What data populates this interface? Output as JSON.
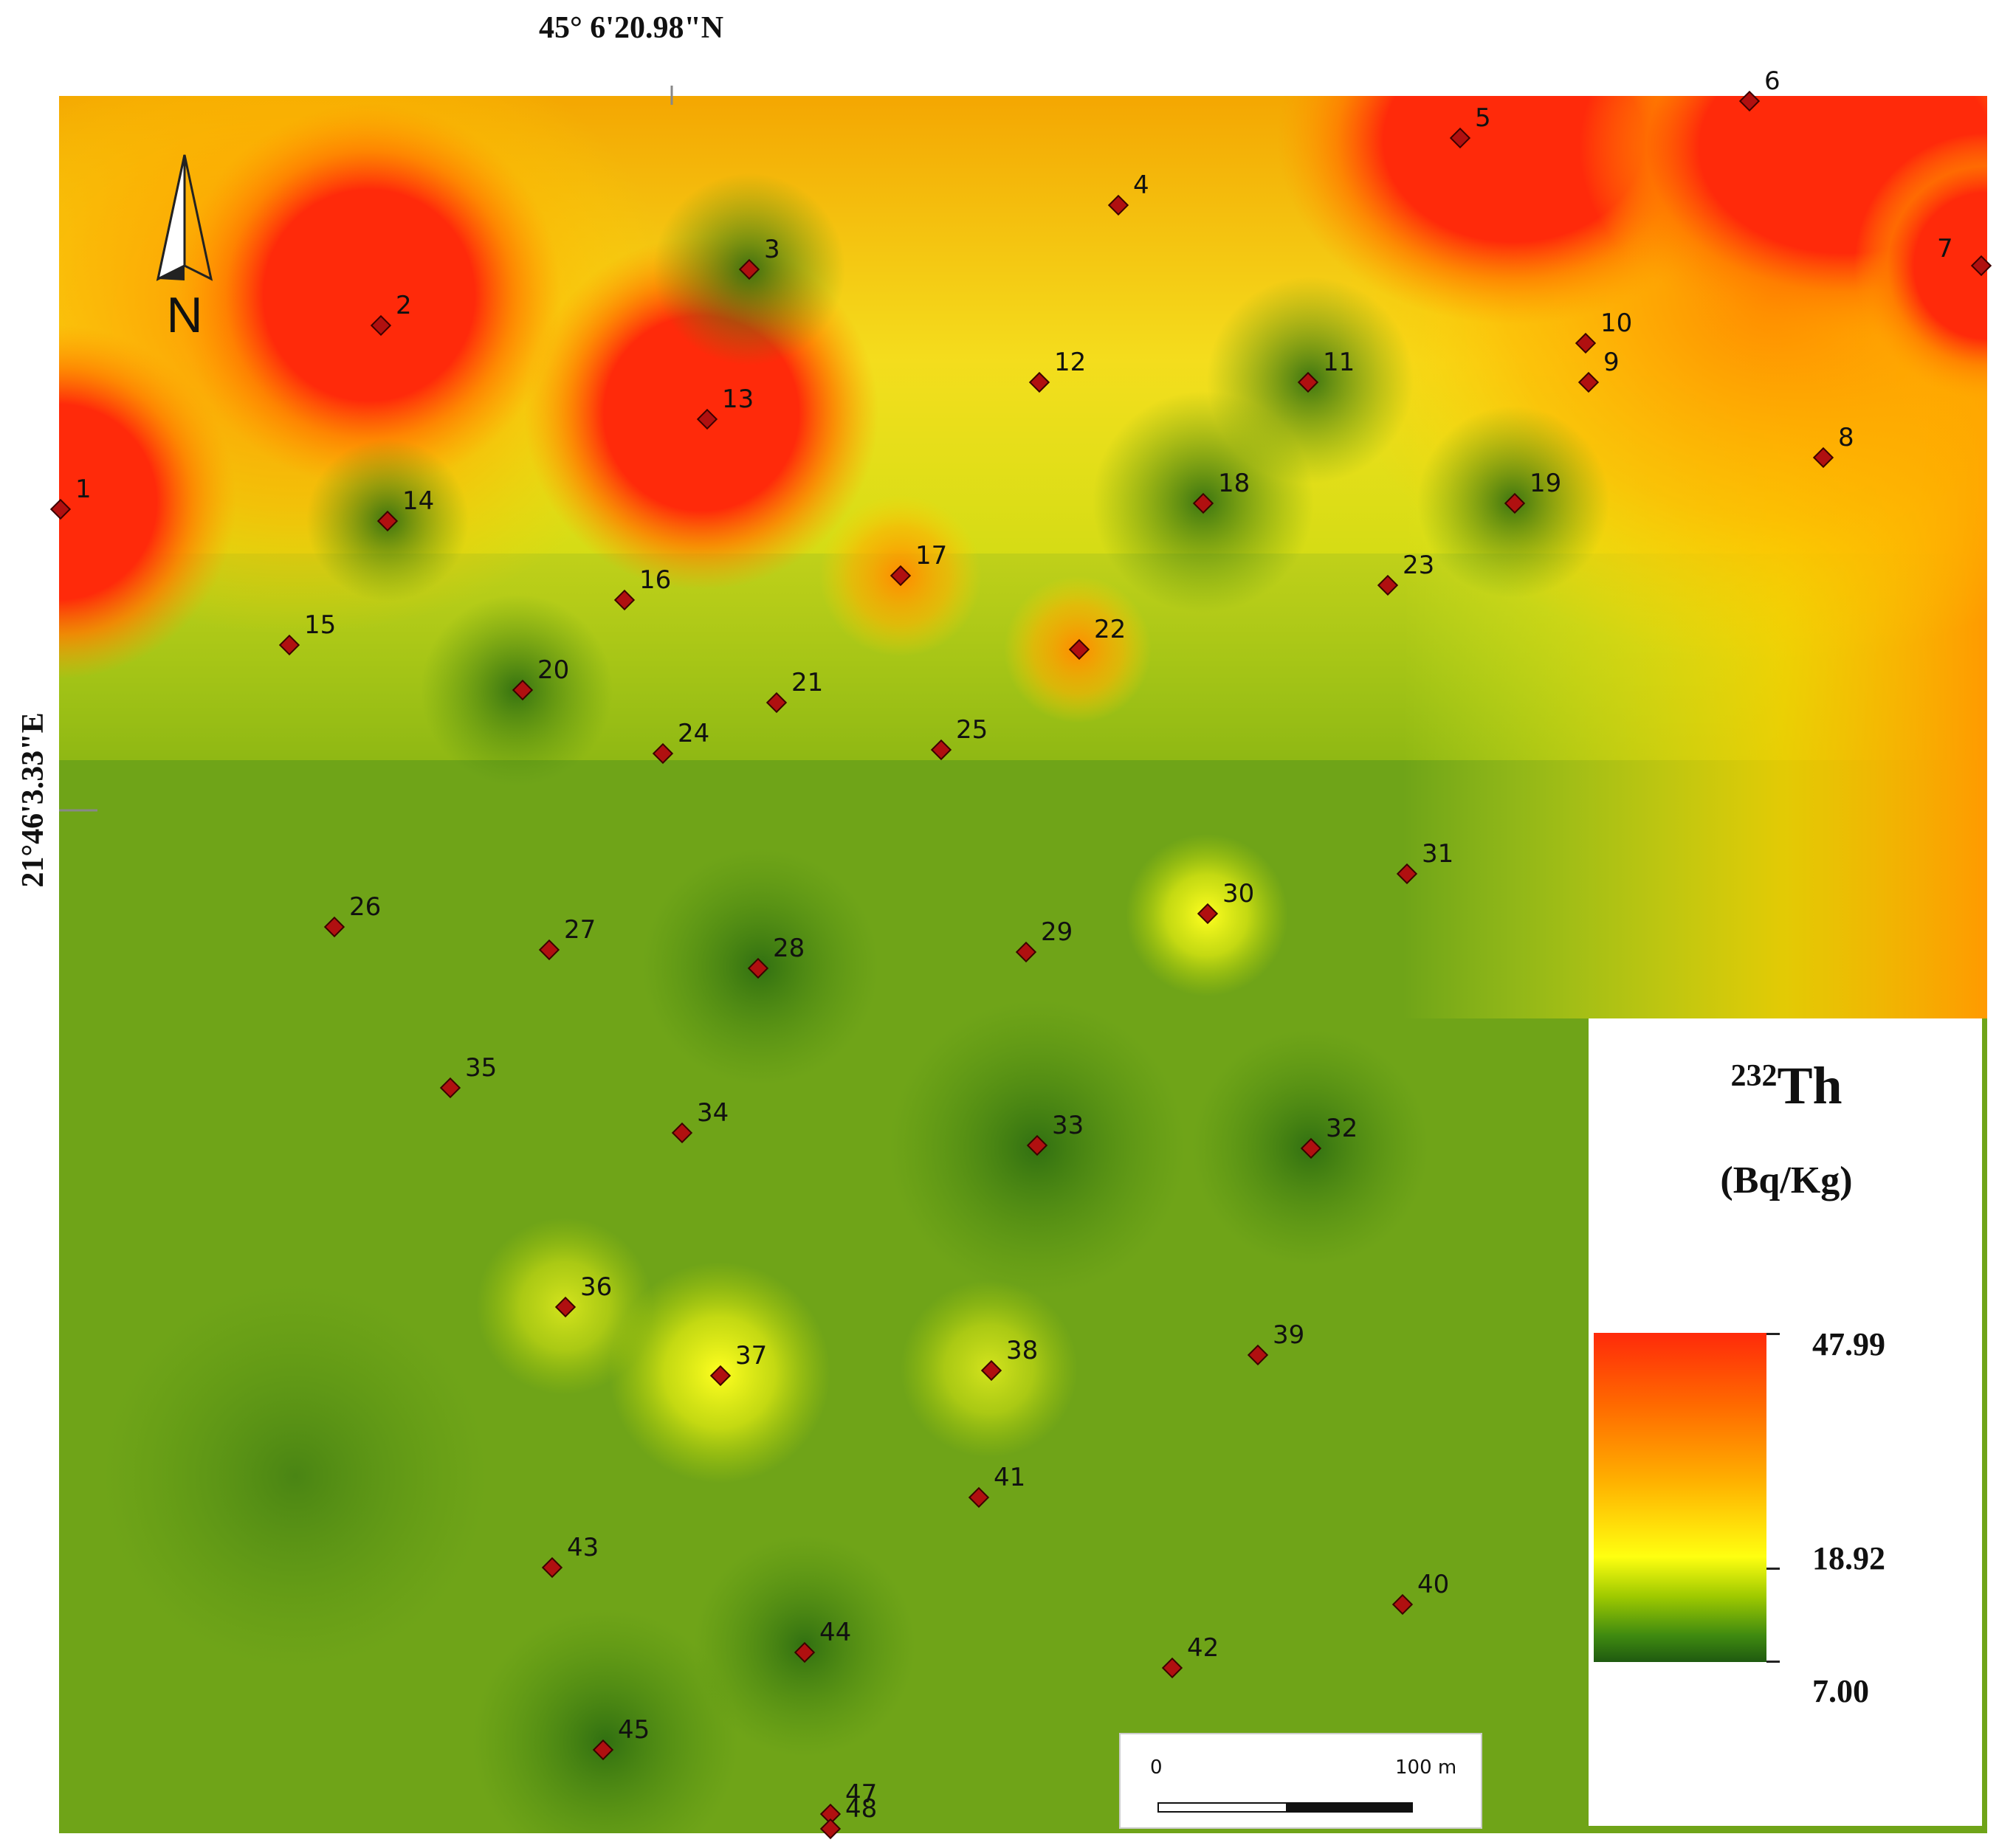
{
  "map": {
    "latitude_label": "45° 6'20.98\"N",
    "longitude_label": "21°46'3.33\"E",
    "north_label": "N",
    "north_icon": "north-arrow-icon",
    "sample_point_color": "#b01010"
  },
  "points": [
    {
      "id": "1",
      "label": "1"
    },
    {
      "id": "2",
      "label": "2"
    },
    {
      "id": "3",
      "label": "3"
    },
    {
      "id": "4",
      "label": "4"
    },
    {
      "id": "5",
      "label": "5"
    },
    {
      "id": "6",
      "label": "6"
    },
    {
      "id": "7",
      "label": "7"
    },
    {
      "id": "8",
      "label": "8"
    },
    {
      "id": "9",
      "label": "9"
    },
    {
      "id": "10",
      "label": "10"
    },
    {
      "id": "11",
      "label": "11"
    },
    {
      "id": "12",
      "label": "12"
    },
    {
      "id": "13",
      "label": "13"
    },
    {
      "id": "14",
      "label": "14"
    },
    {
      "id": "15",
      "label": "15"
    },
    {
      "id": "16",
      "label": "16"
    },
    {
      "id": "17",
      "label": "17"
    },
    {
      "id": "18",
      "label": "18"
    },
    {
      "id": "19",
      "label": "19"
    },
    {
      "id": "20",
      "label": "20"
    },
    {
      "id": "21",
      "label": "21"
    },
    {
      "id": "22",
      "label": "22"
    },
    {
      "id": "23",
      "label": "23"
    },
    {
      "id": "24",
      "label": "24"
    },
    {
      "id": "25",
      "label": "25"
    },
    {
      "id": "26",
      "label": "26"
    },
    {
      "id": "27",
      "label": "27"
    },
    {
      "id": "28",
      "label": "28"
    },
    {
      "id": "29",
      "label": "29"
    },
    {
      "id": "30",
      "label": "30"
    },
    {
      "id": "31",
      "label": "31"
    },
    {
      "id": "32",
      "label": "32"
    },
    {
      "id": "33",
      "label": "33"
    },
    {
      "id": "34",
      "label": "34"
    },
    {
      "id": "35",
      "label": "35"
    },
    {
      "id": "36",
      "label": "36"
    },
    {
      "id": "37",
      "label": "37"
    },
    {
      "id": "38",
      "label": "38"
    },
    {
      "id": "39",
      "label": "39"
    },
    {
      "id": "40",
      "label": "40"
    },
    {
      "id": "41",
      "label": "41"
    },
    {
      "id": "42",
      "label": "42"
    },
    {
      "id": "43",
      "label": "43"
    },
    {
      "id": "44",
      "label": "44"
    },
    {
      "id": "45",
      "label": "45"
    },
    {
      "id": "47",
      "label": "47"
    },
    {
      "id": "48",
      "label": "48"
    }
  ],
  "legend": {
    "isotope_mass": "232",
    "isotope_symbol": "Th",
    "unit": "(Bq/Kg)",
    "max_value": "47.99",
    "mid_value": "18.92",
    "min_value": "7.00",
    "colors": {
      "high": "#ff2a0a",
      "mid": "#ffff10",
      "low": "#1f5a10"
    }
  },
  "scalebar": {
    "start_label": "0",
    "end_label": "100 m"
  }
}
